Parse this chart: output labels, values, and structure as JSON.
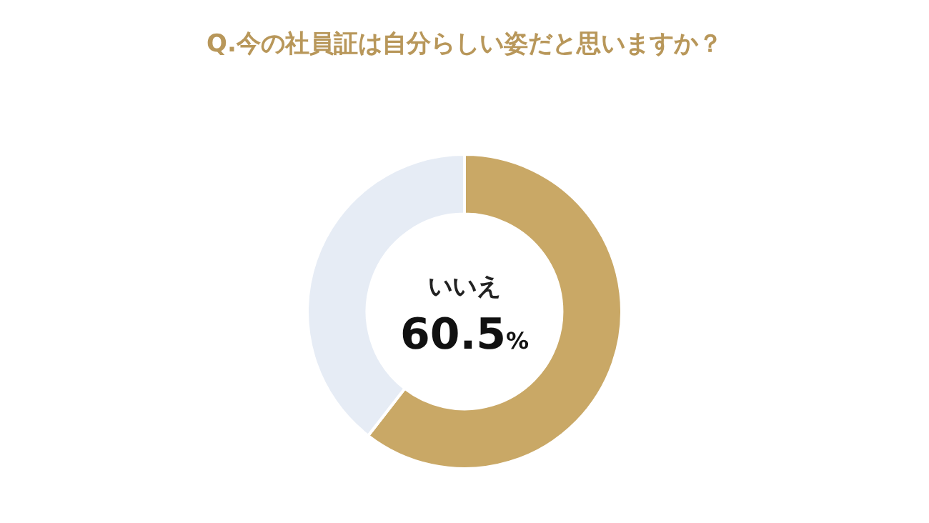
{
  "chart_data": {
    "type": "donut",
    "title": "Q.今の社員証は自分らしい姿だと思いますか？",
    "categories": [
      "いいえ",
      null
    ],
    "values": [
      60.5,
      39.5
    ],
    "colors": [
      "#c9a866",
      "#e6ecf5"
    ],
    "value_labels": [
      "60.5%",
      null
    ]
  }
}
